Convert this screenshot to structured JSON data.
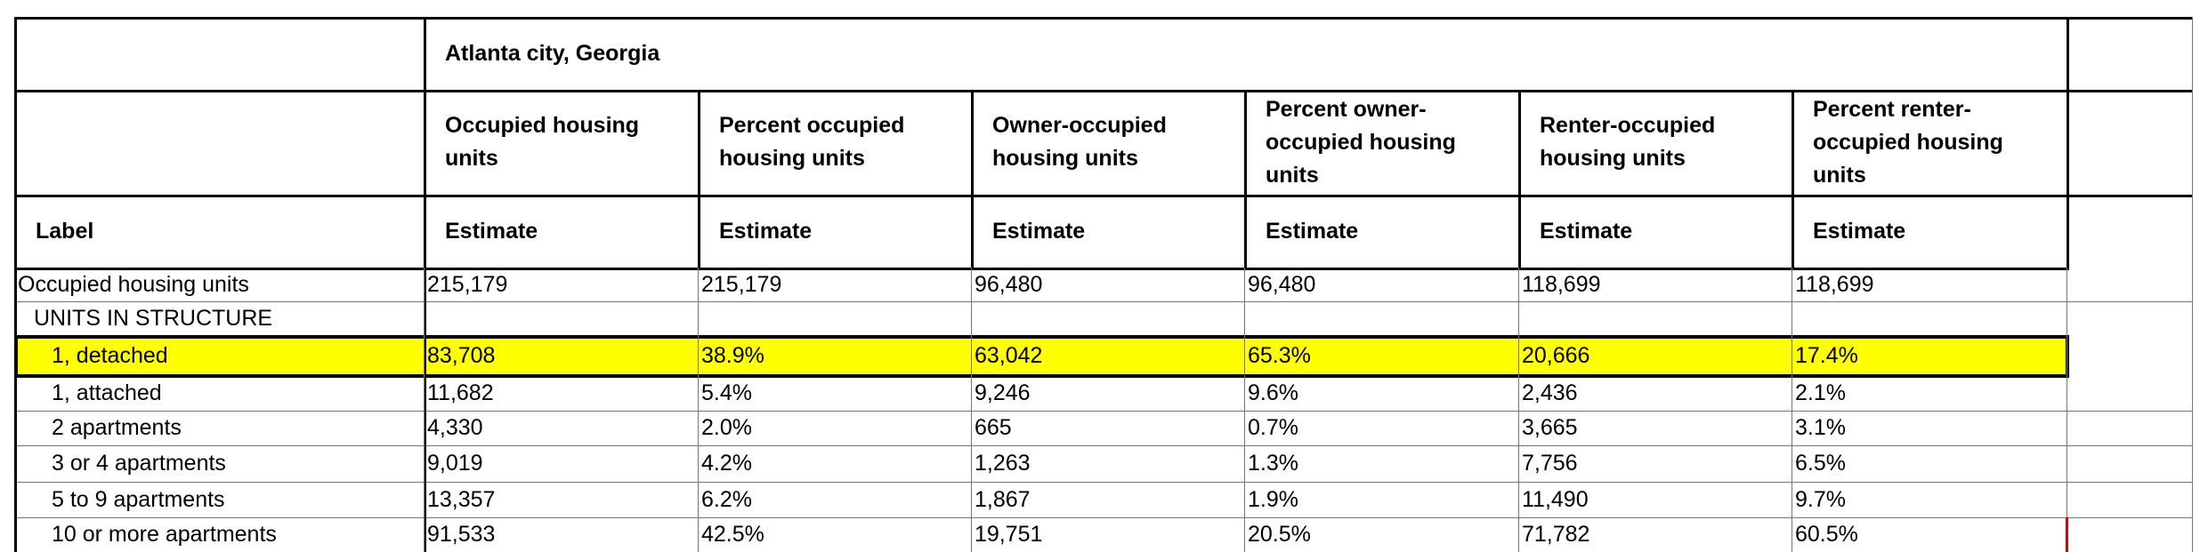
{
  "header": {
    "location": "Atlanta city, Georgia",
    "columns": [
      "Occupied housing units",
      "Percent occupied housing units",
      "Owner-occupied housing units",
      "Percent owner-occupied housing units",
      "Renter-occupied housing units",
      "Percent renter-occupied housing units"
    ],
    "label_header": "Label",
    "estimate_label": "Estimate"
  },
  "rows": [
    {
      "label": "Occupied housing units",
      "values": [
        "215,179",
        "215,179",
        "96,480",
        "96,480",
        "118,699",
        "118,699"
      ]
    },
    {
      "label": "UNITS IN STRUCTURE",
      "values": [
        "",
        "",
        "",
        "",
        "",
        ""
      ]
    },
    {
      "label": "1, detached",
      "values": [
        "83,708",
        "38.9%",
        "63,042",
        "65.3%",
        "20,666",
        "17.4%"
      ]
    },
    {
      "label": "1, attached",
      "values": [
        "11,682",
        "5.4%",
        "9,246",
        "9.6%",
        "2,436",
        "2.1%"
      ]
    },
    {
      "label": "2 apartments",
      "values": [
        "4,330",
        "2.0%",
        "665",
        "0.7%",
        "3,665",
        "3.1%"
      ]
    },
    {
      "label": "3 or 4 apartments",
      "values": [
        "9,019",
        "4.2%",
        "1,263",
        "1.3%",
        "7,756",
        "6.5%"
      ]
    },
    {
      "label": "5 to 9 apartments",
      "values": [
        "13,357",
        "6.2%",
        "1,867",
        "1.9%",
        "11,490",
        "9.7%"
      ]
    },
    {
      "label": "10 or more apartments",
      "values": [
        "91,533",
        "42.5%",
        "19,751",
        "20.5%",
        "71,782",
        "60.5%"
      ]
    }
  ],
  "highlight": {
    "row_label": "1, detached",
    "color": "#ffff00"
  }
}
